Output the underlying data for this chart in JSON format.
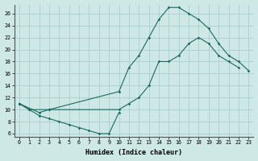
{
  "xlabel": "Humidex (Indice chaleur)",
  "bg_color": "#cde8e5",
  "grid_color": "#aacfcc",
  "line_color": "#1a6b5e",
  "xlim": [
    -0.5,
    23.5
  ],
  "ylim": [
    5.5,
    27.5
  ],
  "xticks": [
    0,
    1,
    2,
    3,
    4,
    5,
    6,
    7,
    8,
    9,
    10,
    11,
    12,
    13,
    14,
    15,
    16,
    17,
    18,
    19,
    20,
    21,
    22,
    23
  ],
  "yticks": [
    6,
    8,
    10,
    12,
    14,
    16,
    18,
    20,
    22,
    24,
    26
  ],
  "line1_x": [
    0,
    1,
    2,
    3,
    4,
    5,
    6,
    7,
    8,
    9,
    10
  ],
  "line1_y": [
    11,
    10,
    9,
    8.5,
    8,
    7.5,
    7,
    6.5,
    6,
    6,
    9.5
  ],
  "line2_x": [
    0,
    1,
    3,
    10,
    11,
    12,
    13,
    14,
    15,
    16,
    17,
    18,
    19,
    20,
    21,
    22
  ],
  "line2_y": [
    11,
    10,
    10,
    10,
    11,
    12,
    14,
    18,
    18,
    19,
    21,
    22,
    21,
    19,
    18,
    17
  ],
  "line3_x": [
    0,
    2,
    3,
    10,
    11,
    12,
    13,
    14,
    15,
    16,
    17,
    18,
    19,
    20,
    21,
    22,
    23
  ],
  "line3_y": [
    11,
    9.5,
    10,
    13,
    17,
    19,
    22,
    25,
    27,
    27,
    26,
    25,
    23.5,
    21,
    19,
    18,
    16.5
  ]
}
